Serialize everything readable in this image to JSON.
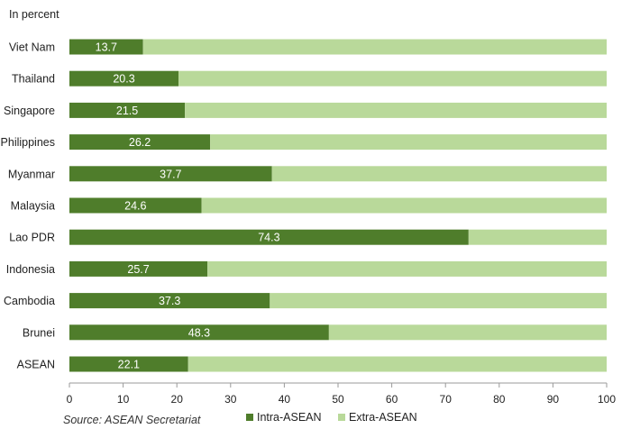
{
  "chart_data": {
    "type": "bar",
    "orientation": "horizontal",
    "stacked": true,
    "unit_label": "In percent",
    "source": "Source:  ASEAN Secretariat",
    "categories": [
      "Viet Nam",
      "Thailand",
      "Singapore",
      "Philippines",
      "Myanmar",
      "Malaysia",
      "Lao PDR",
      "Indonesia",
      "Cambodia",
      "Brunei",
      "ASEAN"
    ],
    "series": [
      {
        "name": "Intra-ASEAN",
        "color": "#4f7d2b",
        "values": [
          13.7,
          20.3,
          21.5,
          26.2,
          37.7,
          24.6,
          74.3,
          25.7,
          37.3,
          48.3,
          22.1
        ]
      },
      {
        "name": "Extra-ASEAN",
        "color": "#b9d99a",
        "values": [
          86.3,
          79.7,
          78.5,
          73.8,
          62.3,
          75.4,
          25.7,
          74.3,
          62.7,
          51.7,
          77.9
        ]
      }
    ],
    "data_labels": [
      "13.7",
      "20.3",
      "21.5",
      "26.2",
      "37.7",
      "24.6",
      "74.3",
      "25.7",
      "37.3",
      "48.3",
      "22.1"
    ],
    "xlim": [
      0,
      100
    ],
    "x_ticks": [
      0,
      10,
      20,
      30,
      40,
      50,
      60,
      70,
      80,
      90,
      100
    ],
    "grid": false,
    "legend_position": "bottom"
  }
}
